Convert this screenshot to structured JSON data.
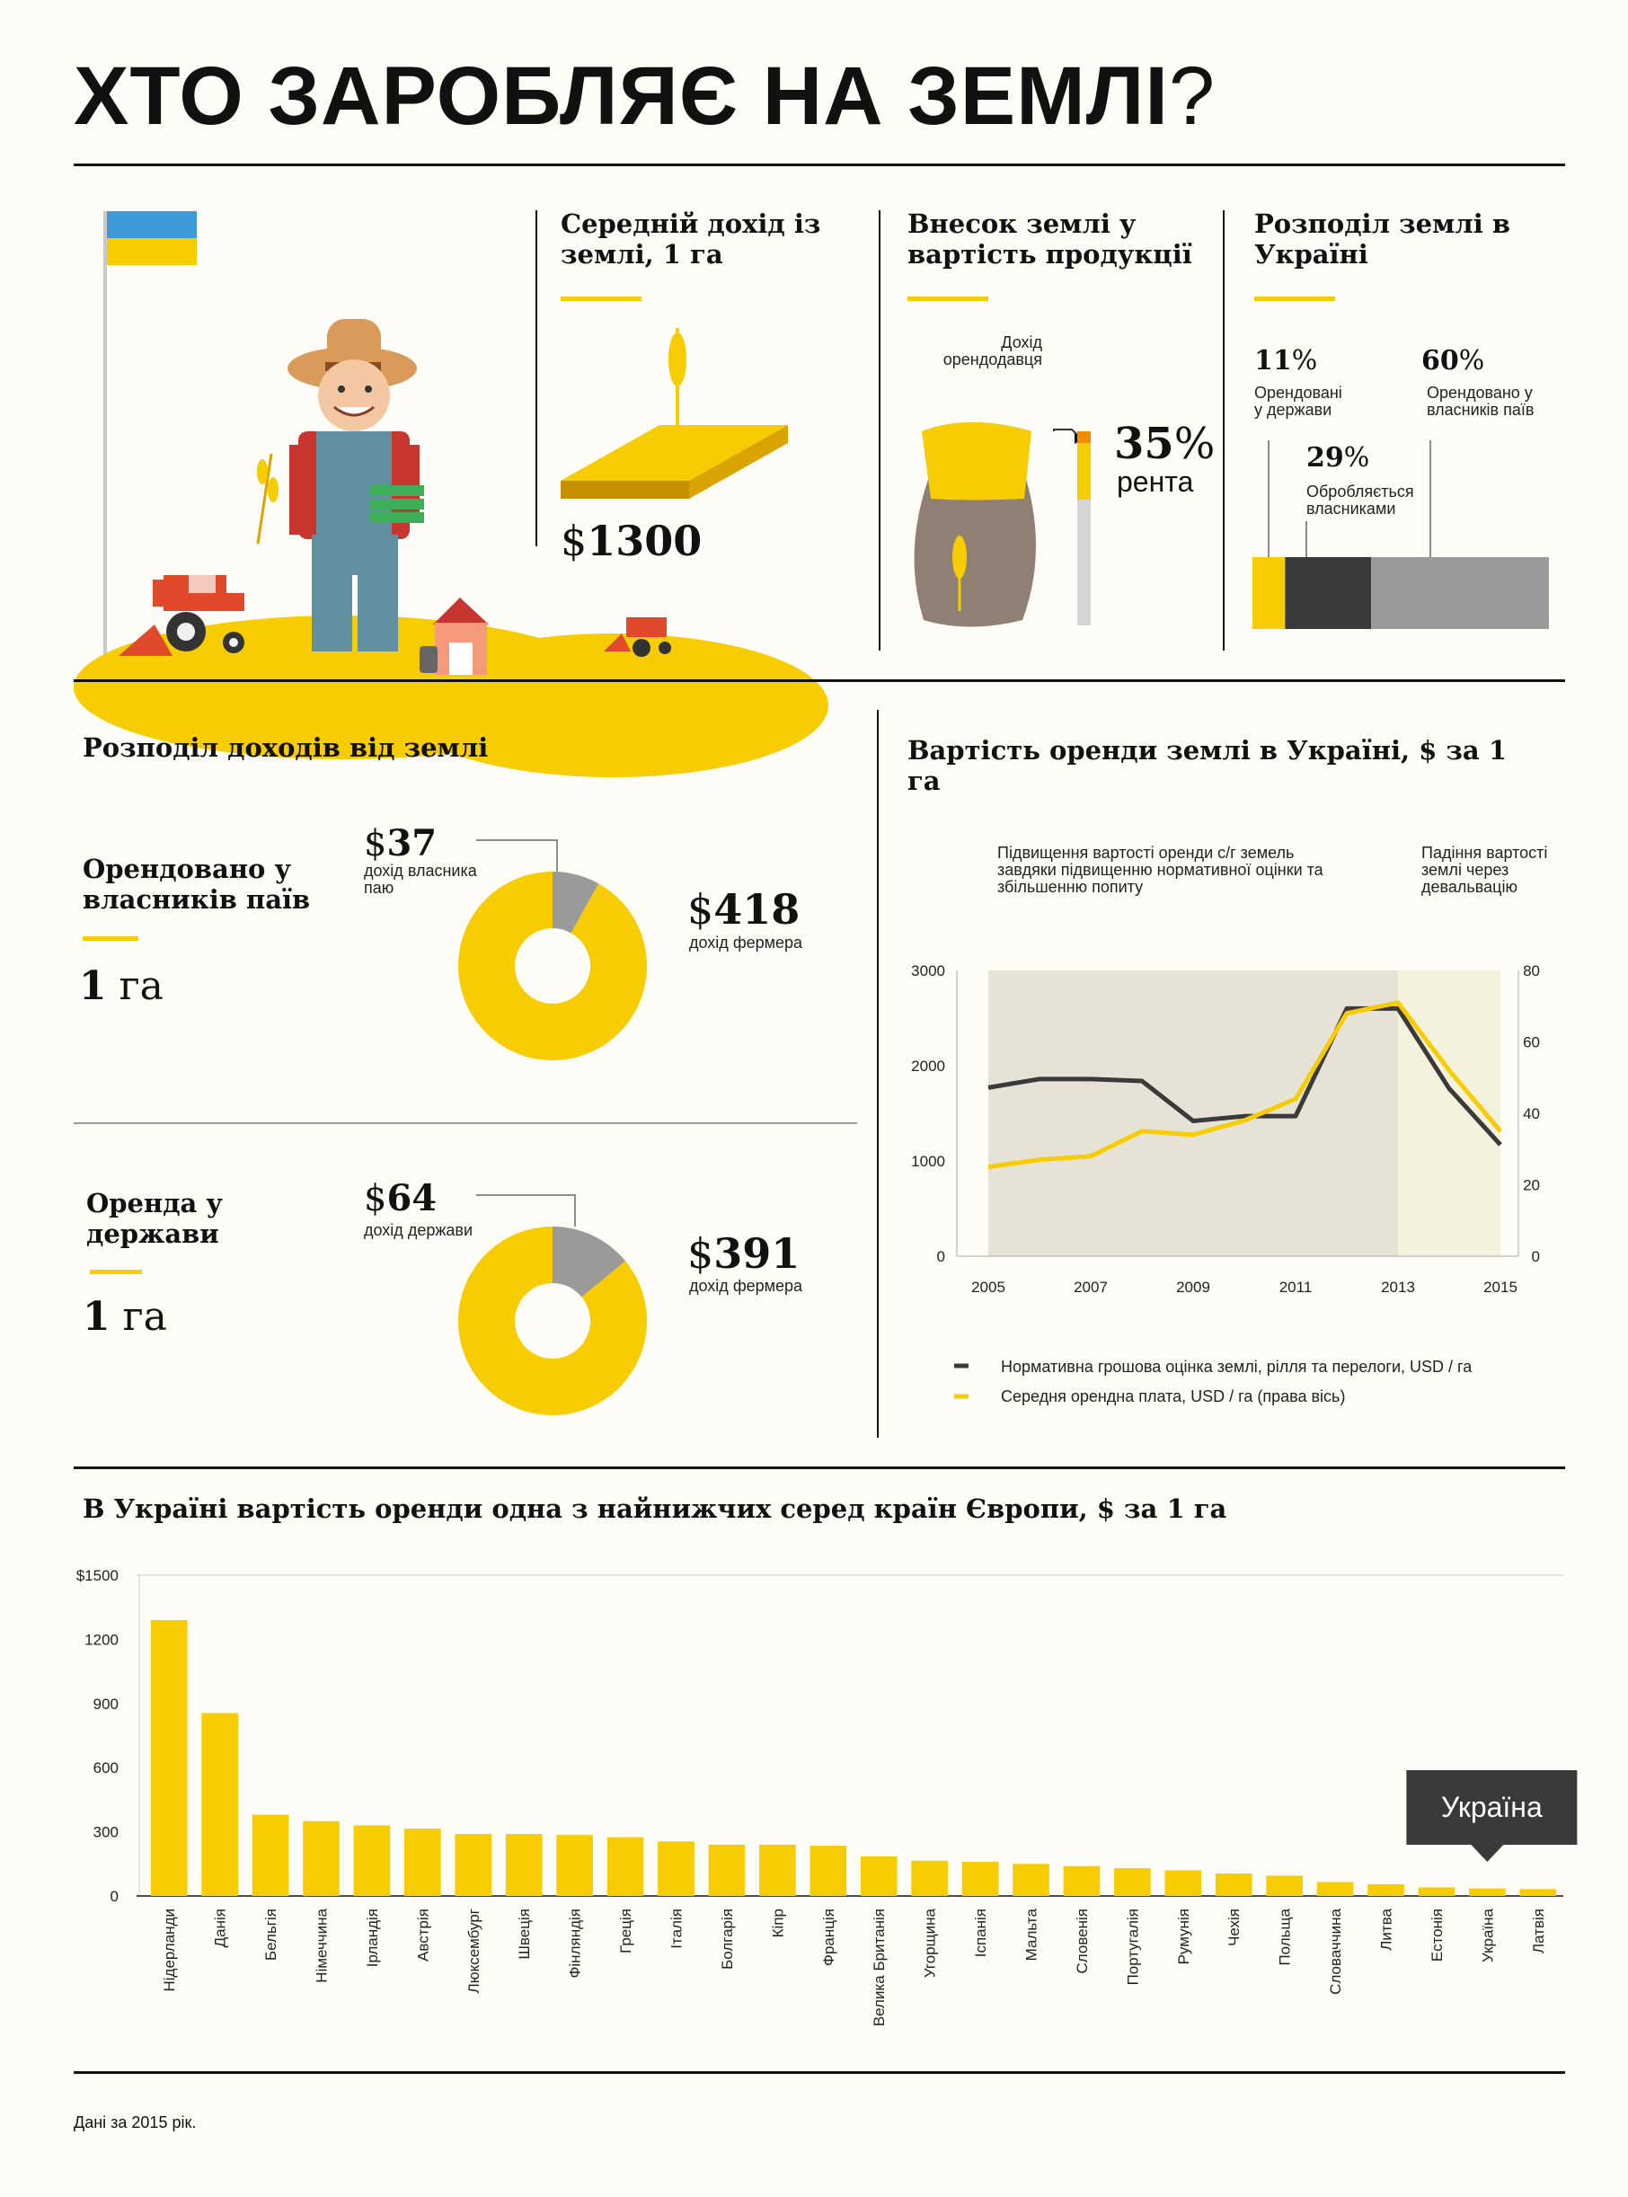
{
  "title": {
    "main": "ХТО ЗАРОБЛЯЄ НА ЗЕМЛІ",
    "q": "?"
  },
  "colors": {
    "yellow": "#f7cc00",
    "dark": "#3a3a3a",
    "gray": "#9a9a9a",
    "accent_orange": "#f08c00"
  },
  "income": {
    "heading": "Середній дохід із землі, 1 га",
    "cur": "$",
    "value": "1300"
  },
  "contrib": {
    "heading": "Внесок землі у вартість продукції",
    "label": "Дохід орендодавця",
    "pct": "35",
    "pct_sign": "%",
    "word": "рента"
  },
  "distribution": {
    "heading": "Розподіл землі в Україні",
    "items": [
      {
        "pct": "11",
        "sign": "%",
        "label": "Орендовані у держави"
      },
      {
        "pct": "60",
        "sign": "%",
        "label": "Орендовано у власників паїв"
      },
      {
        "pct": "29",
        "sign": "%",
        "label": "Обробляється власниками"
      }
    ],
    "bar_fractions": [
      0.11,
      0.29,
      0.6
    ]
  },
  "income_split": {
    "heading": "Розподіл доходів від землі",
    "blocks": [
      {
        "title": "Орендовано у власників паїв",
        "area": "1",
        "unit": "га",
        "small": {
          "cur": "$",
          "value": "37",
          "label": "дохід власника паю"
        },
        "large": {
          "cur": "$",
          "value": "418",
          "label": "дохід фермера"
        }
      },
      {
        "title": "Оренда у держави",
        "area": "1",
        "unit": "га",
        "small": {
          "cur": "$",
          "value": "64",
          "label": "дохід держави"
        },
        "large": {
          "cur": "$",
          "value": "391",
          "label": "дохід фермера"
        }
      }
    ]
  },
  "line_chart_title": "Вартість оренди землі в Україні, $ за 1 га",
  "annot_rise": "Підвищення вартості оренди с/г земель завдяки підвищенню нормативної оцінки та збільшенню попиту",
  "annot_fall": "Падіння вартості землі через девальвацію",
  "bar_chart_title": "В Україні вартість оренди одна з найнижчих серед країн Європи, $ за 1 га",
  "ukraine_callout": "Україна",
  "footnote": "Дані за 2015 рік.",
  "chart_data": [
    {
      "type": "line",
      "x": [
        2005,
        2006,
        2007,
        2008,
        2009,
        2010,
        2011,
        2012,
        2013,
        2014,
        2015
      ],
      "series": [
        {
          "name": "Нормативна грошова оцінка землі, рілля та перелоги, USD / га",
          "axis": "left",
          "color": "#3a3a3a",
          "values": [
            1770,
            1860,
            1860,
            1840,
            1420,
            1470,
            1470,
            2600,
            2600,
            1760,
            1170
          ]
        },
        {
          "name": "Середня орендна плата, USD / га (права вісь)",
          "axis": "right",
          "color": "#f7cc00",
          "values": [
            25,
            27,
            28,
            35,
            34,
            38,
            44,
            68,
            71,
            52,
            35
          ]
        }
      ],
      "ylim_left": [
        0,
        3000
      ],
      "yticks_left": [
        0,
        1000,
        2000,
        3000
      ],
      "ylim_right": [
        0,
        80
      ],
      "yticks_right": [
        0,
        20,
        40,
        60,
        80
      ],
      "xticks": [
        2005,
        2007,
        2009,
        2011,
        2013,
        2015
      ],
      "shaded_periods": [
        [
          2005,
          2013
        ],
        [
          2013,
          2015
        ]
      ]
    },
    {
      "type": "bar",
      "categories": [
        "Нідерланди",
        "Данія",
        "Бельгія",
        "Німеччина",
        "Ірландія",
        "Австрія",
        "Люксембург",
        "Швеція",
        "Фінляндія",
        "Греція",
        "Італія",
        "Болгарія",
        "Кіпр",
        "Франція",
        "Велика Британія",
        "Угорщина",
        "Іспанія",
        "Мальта",
        "Словенія",
        "Португалія",
        "Румунія",
        "Чехія",
        "Польща",
        "Словаччина",
        "Литва",
        "Естонія",
        "Україна",
        "Латвія"
      ],
      "values": [
        1290,
        855,
        380,
        350,
        330,
        315,
        290,
        290,
        285,
        275,
        255,
        240,
        240,
        235,
        185,
        165,
        160,
        150,
        140,
        130,
        120,
        105,
        95,
        65,
        55,
        40,
        35,
        32
      ],
      "ylim": [
        0,
        1500
      ],
      "yticks": [
        "$1500",
        "1200",
        "900",
        "600",
        "300",
        "0"
      ],
      "highlight": "Україна"
    }
  ]
}
